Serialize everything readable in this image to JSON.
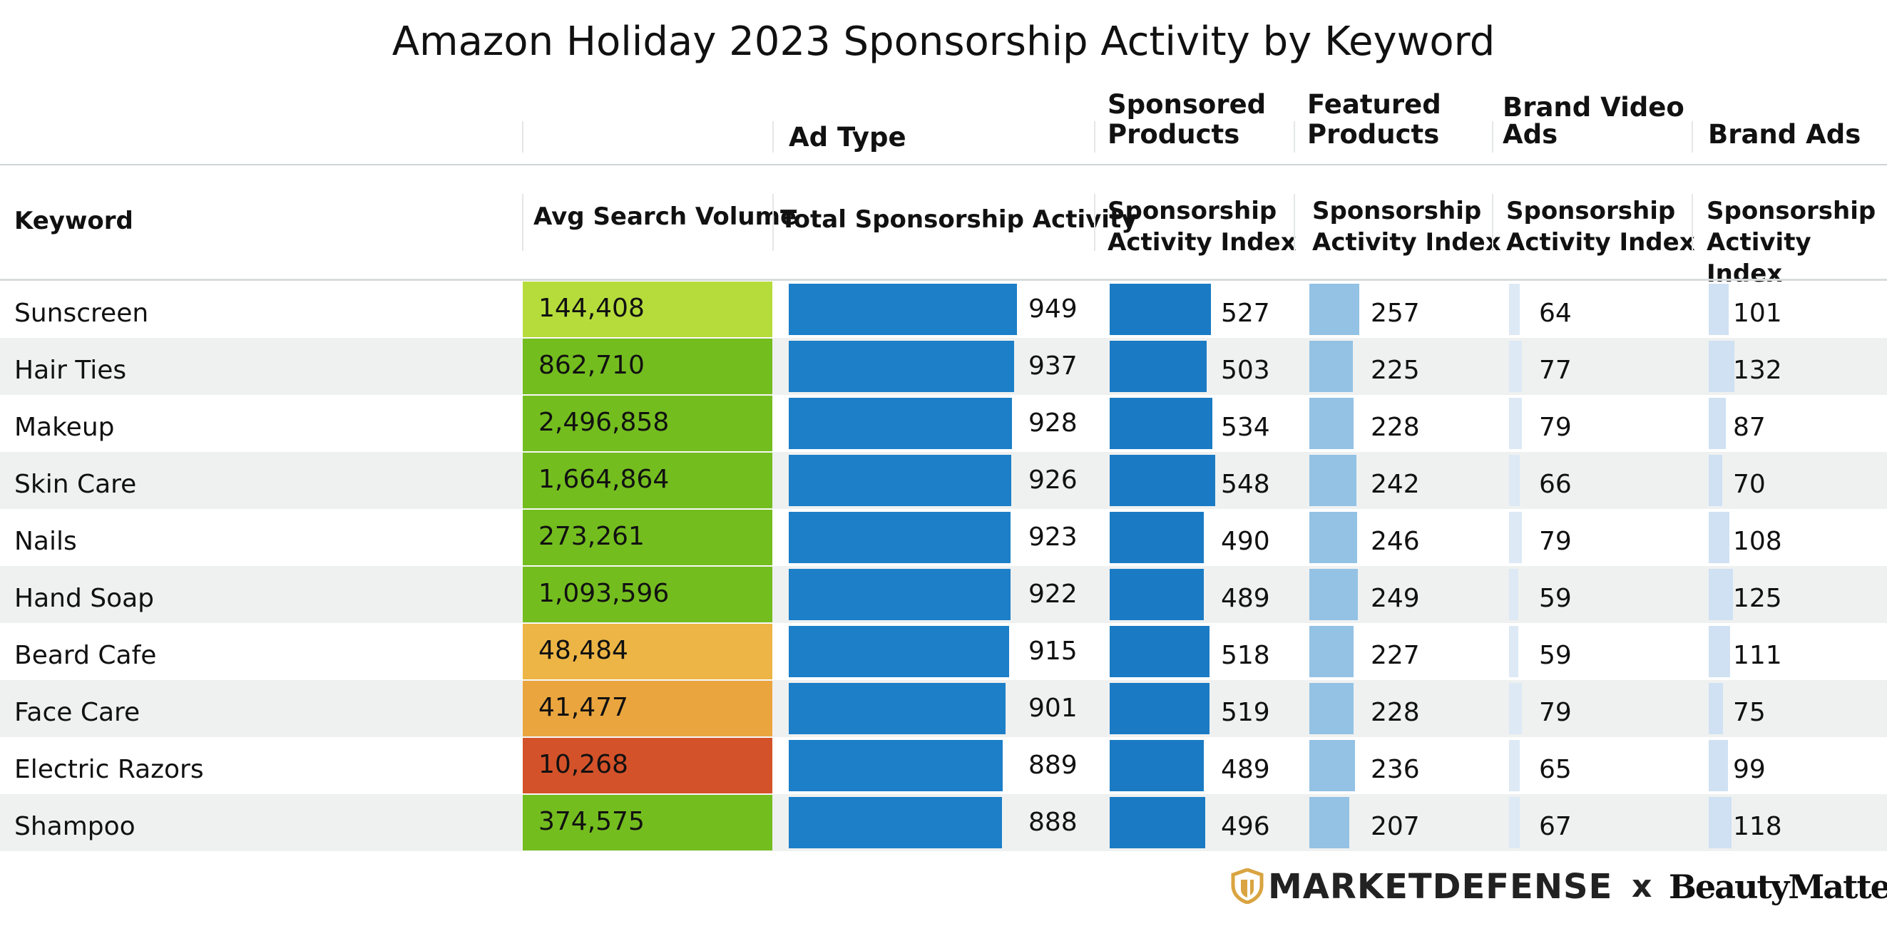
{
  "title": "Amazon Holiday 2023 Sponsorship Activity by Keyword",
  "groups": {
    "ad_type": "Ad Type",
    "sponsored_products": [
      "Sponsored",
      "Products"
    ],
    "featured_products": [
      "Featured",
      "Products"
    ],
    "brand_video_ads": [
      "Brand Video",
      "Ads"
    ],
    "brand_ads": "Brand Ads"
  },
  "columns": {
    "keyword": "Keyword",
    "avg_search_volume": "Avg Search Volume",
    "total_sponsorship_activity": "Total Sponsorship Activity",
    "sponsorship_activity_index": [
      "Sponsorship",
      "Activity Index"
    ]
  },
  "colors": {
    "vol_high": "#74bd1f",
    "vol_top": "#b6dc3b",
    "vol_mid": "#edb545",
    "vol_mid2": "#eaa53e",
    "vol_low": "#d4522a",
    "total_bar": "#1c7fc8",
    "sp_bar": "#1a7bc4",
    "fp_bar": "#93c2e4",
    "bv_bar": "#dde9f5",
    "ba_bar": "#cfe1f2"
  },
  "chart_data": {
    "type": "table",
    "title": "Amazon Holiday 2023 Sponsorship Activity by Keyword",
    "rows": [
      {
        "keyword": "Sunscreen",
        "avg_search_volume": "144,408",
        "vol_class": "vol_top",
        "total": 949,
        "sponsored_products": 527,
        "featured_products": 257,
        "brand_video_ads": 64,
        "brand_ads": 101
      },
      {
        "keyword": "Hair Ties",
        "avg_search_volume": "862,710",
        "vol_class": "vol_high",
        "total": 937,
        "sponsored_products": 503,
        "featured_products": 225,
        "brand_video_ads": 77,
        "brand_ads": 132
      },
      {
        "keyword": "Makeup",
        "avg_search_volume": "2,496,858",
        "vol_class": "vol_high",
        "total": 928,
        "sponsored_products": 534,
        "featured_products": 228,
        "brand_video_ads": 79,
        "brand_ads": 87
      },
      {
        "keyword": "Skin Care",
        "avg_search_volume": "1,664,864",
        "vol_class": "vol_high",
        "total": 926,
        "sponsored_products": 548,
        "featured_products": 242,
        "brand_video_ads": 66,
        "brand_ads": 70
      },
      {
        "keyword": "Nails",
        "avg_search_volume": "273,261",
        "vol_class": "vol_high",
        "total": 923,
        "sponsored_products": 490,
        "featured_products": 246,
        "brand_video_ads": 79,
        "brand_ads": 108
      },
      {
        "keyword": "Hand Soap",
        "avg_search_volume": "1,093,596",
        "vol_class": "vol_high",
        "total": 922,
        "sponsored_products": 489,
        "featured_products": 249,
        "brand_video_ads": 59,
        "brand_ads": 125
      },
      {
        "keyword": "Beard Cafe",
        "avg_search_volume": "48,484",
        "vol_class": "vol_mid",
        "total": 915,
        "sponsored_products": 518,
        "featured_products": 227,
        "brand_video_ads": 59,
        "brand_ads": 111
      },
      {
        "keyword": "Face Care",
        "avg_search_volume": "41,477",
        "vol_class": "vol_mid2",
        "total": 901,
        "sponsored_products": 519,
        "featured_products": 228,
        "brand_video_ads": 79,
        "brand_ads": 75
      },
      {
        "keyword": "Electric Razors",
        "avg_search_volume": "10,268",
        "vol_class": "vol_low",
        "total": 889,
        "sponsored_products": 489,
        "featured_products": 236,
        "brand_video_ads": 65,
        "brand_ads": 99
      },
      {
        "keyword": "Shampoo",
        "avg_search_volume": "374,575",
        "vol_class": "vol_high",
        "total": 888,
        "sponsored_products": 496,
        "featured_products": 207,
        "brand_video_ads": 67,
        "brand_ads": 118
      }
    ]
  },
  "footer": {
    "brand1": "MARKETDEFENSE",
    "separator": "x",
    "brand2": "BeautyMatter"
  }
}
